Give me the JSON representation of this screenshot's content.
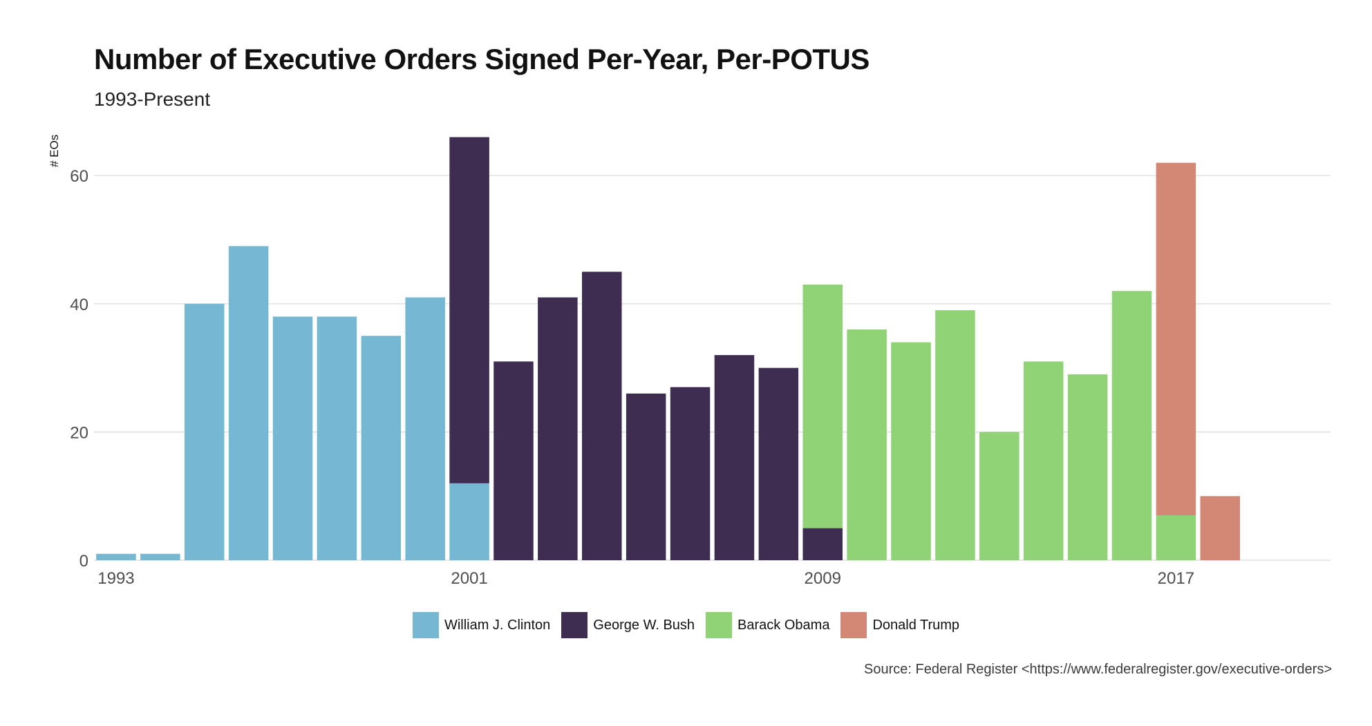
{
  "chart_data": {
    "type": "bar",
    "stacked": true,
    "title": "Number of Executive Orders Signed Per-Year, Per-POTUS",
    "subtitle": "1993-Present",
    "caption": "Source: Federal Register <https://www.federalregister.gov/executive-orders>",
    "xlabel": "",
    "ylabel": "# EOs",
    "ylim": [
      0,
      66
    ],
    "yticks": [
      0,
      20,
      40,
      60
    ],
    "grid": true,
    "legend_position": "bottom",
    "x": [
      1993,
      1994,
      1995,
      1996,
      1997,
      1998,
      1999,
      2000,
      2001,
      2002,
      2003,
      2004,
      2005,
      2006,
      2007,
      2008,
      2009,
      2010,
      2011,
      2012,
      2013,
      2014,
      2015,
      2016,
      2017,
      2018
    ],
    "xticks": [
      1993,
      2001,
      2009,
      2017
    ],
    "xlim": [
      1992.5,
      2020.5
    ],
    "series": [
      {
        "name": "William J. Clinton",
        "color": "#76b8d3",
        "values": [
          1,
          1,
          40,
          49,
          38,
          38,
          35,
          41,
          12,
          0,
          0,
          0,
          0,
          0,
          0,
          0,
          0,
          0,
          0,
          0,
          0,
          0,
          0,
          0,
          0,
          0
        ]
      },
      {
        "name": "George W. Bush",
        "color": "#3e2c51",
        "values": [
          0,
          0,
          0,
          0,
          0,
          0,
          0,
          0,
          54,
          31,
          41,
          45,
          26,
          27,
          32,
          30,
          5,
          0,
          0,
          0,
          0,
          0,
          0,
          0,
          0,
          0
        ]
      },
      {
        "name": "Barack Obama",
        "color": "#90d376",
        "values": [
          0,
          0,
          0,
          0,
          0,
          0,
          0,
          0,
          0,
          0,
          0,
          0,
          0,
          0,
          0,
          0,
          38,
          36,
          34,
          39,
          20,
          31,
          29,
          42,
          7,
          0
        ]
      },
      {
        "name": "Donald Trump",
        "color": "#d38876",
        "values": [
          0,
          0,
          0,
          0,
          0,
          0,
          0,
          0,
          0,
          0,
          0,
          0,
          0,
          0,
          0,
          0,
          0,
          0,
          0,
          0,
          0,
          0,
          0,
          0,
          55,
          10
        ]
      }
    ]
  }
}
